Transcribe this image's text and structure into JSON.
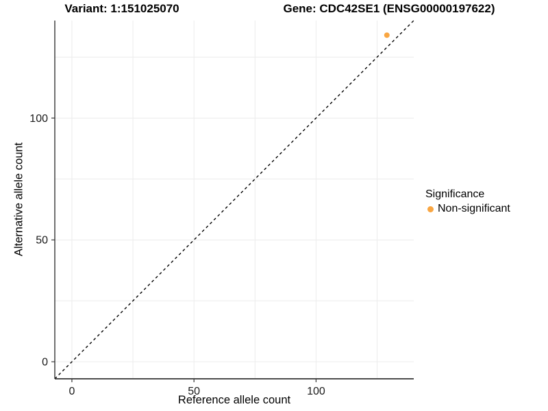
{
  "titles": {
    "variant": "Variant: 1:151025070",
    "gene": "Gene: CDC42SE1 (ENSG00000197622)"
  },
  "chart_data": {
    "type": "scatter",
    "xlabel": "Reference allele count",
    "ylabel": "Alternative allele count",
    "xlim": [
      -7,
      140
    ],
    "ylim": [
      -7,
      140
    ],
    "x_ticks": [
      0,
      50,
      100
    ],
    "y_ticks": [
      0,
      50,
      100
    ],
    "x_minor_ticks": [
      25,
      75,
      125
    ],
    "y_minor_ticks": [
      25,
      75,
      125
    ],
    "grid": true,
    "legend_position": "right",
    "reference_line": {
      "type": "identity y=x",
      "style": "dashed",
      "color": "#000000"
    },
    "series": [
      {
        "name": "Non-significant",
        "color": "#F9A642",
        "points": [
          {
            "x": 129,
            "y": 134
          }
        ]
      }
    ],
    "legend": {
      "title": "Significance",
      "entries": [
        {
          "label": "Non-significant",
          "color": "#F9A642"
        }
      ]
    }
  },
  "style_colors": {
    "grid": "#ECECEC",
    "axis_line": "#333333",
    "tick_text": "#1A1A1A"
  }
}
